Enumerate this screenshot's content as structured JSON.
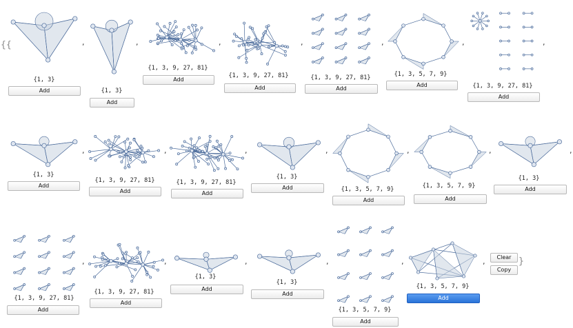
{
  "open_braces": "{{",
  "close_brace": "}",
  "separator": ",",
  "side_buttons": {
    "clear_label": "Clear",
    "copy_label": "Copy"
  },
  "add_label": "Add",
  "cells": [
    {
      "caption": "{1, 3}"
    },
    {
      "caption": "{1, 3}"
    },
    {
      "caption": "{1, 3, 9, 27, 81}"
    },
    {
      "caption": "{1, 3, 9, 27, 81}"
    },
    {
      "caption": "{1, 3, 9, 27, 81}"
    },
    {
      "caption": "{1, 3, 5, 7, 9}"
    },
    {
      "caption": "{1, 3, 9, 27, 81}"
    },
    {
      "caption": "{1, 3}"
    },
    {
      "caption": "{1, 3, 9, 27, 81}"
    },
    {
      "caption": "{1, 3, 9, 27, 81}"
    },
    {
      "caption": "{1, 3}"
    },
    {
      "caption": "{1, 3, 5, 7, 9}"
    },
    {
      "caption": "{1, 3, 5, 7, 9}"
    },
    {
      "caption": "{1, 3}"
    },
    {
      "caption": "{1, 3, 9, 27, 81}"
    },
    {
      "caption": "{1, 3, 9, 27, 81}"
    },
    {
      "caption": "{1, 3}"
    },
    {
      "caption": "{1, 3}"
    },
    {
      "caption": "{1, 3, 5, 7, 9}"
    },
    {
      "caption": "{1, 3, 5, 7, 9}"
    }
  ],
  "colors": {
    "edge": "#4a6a9a",
    "node_fill": "#dfe6f0",
    "face": "#c9d3e0",
    "primary_button": "#2a73d8"
  }
}
